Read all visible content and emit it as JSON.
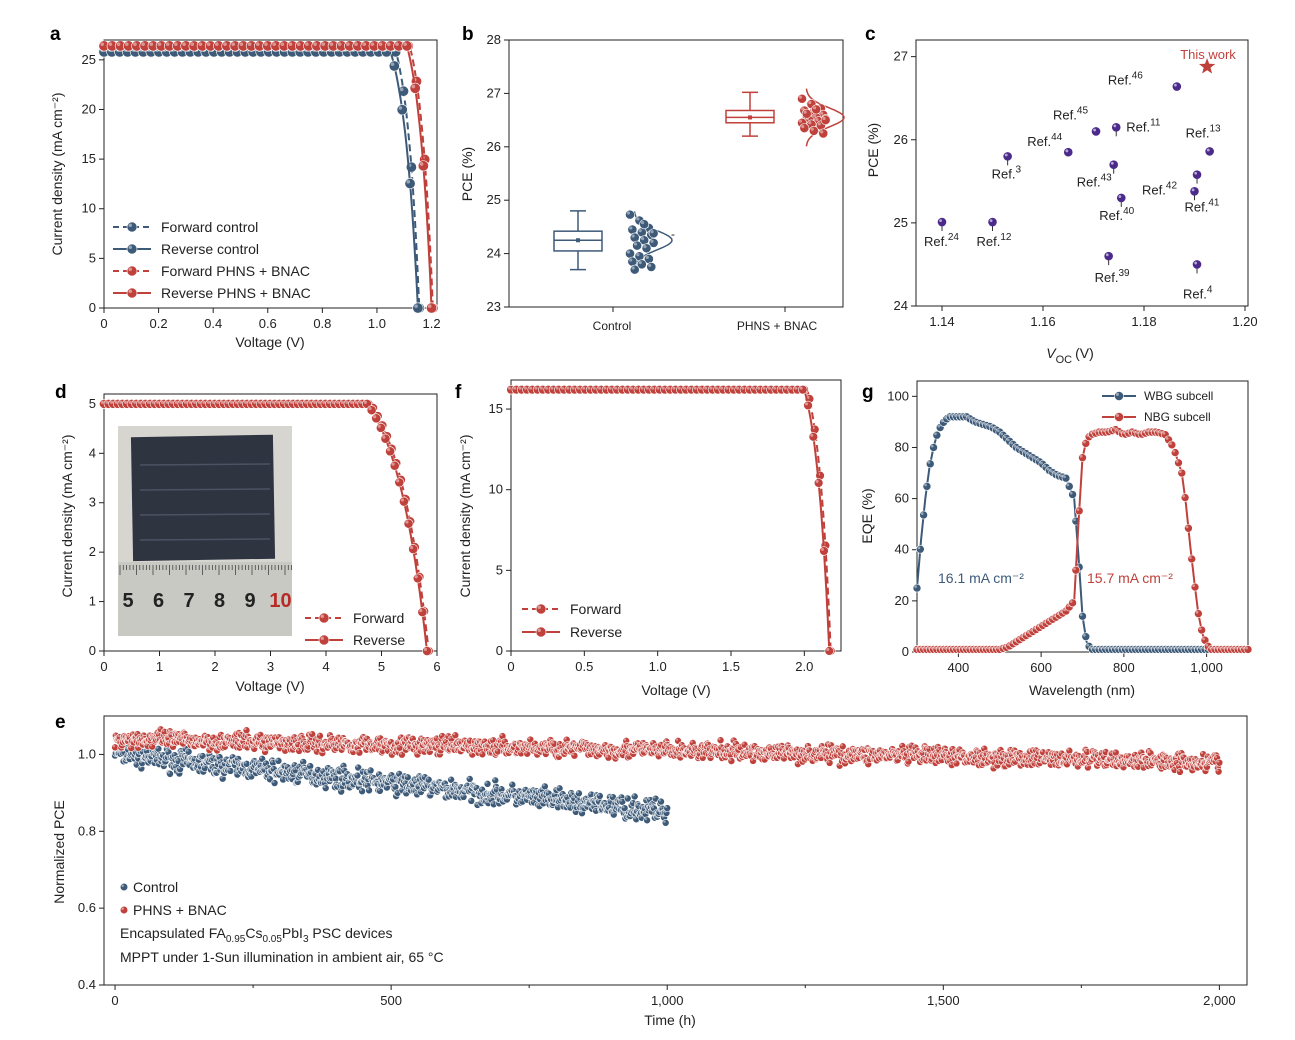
{
  "colors": {
    "blue": "#3d5a78",
    "red": "#c0413b",
    "purple": "#4b2a8c",
    "photo_bg": "#d8d8d2",
    "cell": "#2e3340"
  },
  "chart_data": [
    {
      "panel": "a",
      "type": "line",
      "xlabel": "Voltage (V)",
      "ylabel": "Current density (mA cm⁻²)",
      "xlim": [
        0,
        1.22
      ],
      "ylim": [
        0,
        27
      ],
      "xticks": [
        "0",
        "0.2",
        "0.4",
        "0.6",
        "0.8",
        "1.0",
        "1.2"
      ],
      "yticks": [
        "0",
        "5",
        "10",
        "15",
        "20",
        "25"
      ],
      "legend_position": "bottom-left",
      "series": [
        {
          "name": "Forward control",
          "color": "blue",
          "dashed": true,
          "jsc": 25.8,
          "voc": 1.155,
          "vk": 1.07,
          "n": 0.9
        },
        {
          "name": "Reverse control",
          "color": "blue",
          "dashed": false,
          "jsc": 25.8,
          "voc": 1.15,
          "vk": 1.05,
          "n": 0.85
        },
        {
          "name": "Forward PHNS + BNAC",
          "color": "red",
          "dashed": true,
          "jsc": 26.4,
          "voc": 1.205,
          "vk": 1.12,
          "n": 0.9
        },
        {
          "name": "Reverse PHNS + BNAC",
          "color": "red",
          "dashed": false,
          "jsc": 26.4,
          "voc": 1.2,
          "vk": 1.11,
          "n": 0.85
        }
      ]
    },
    {
      "panel": "b",
      "type": "box",
      "ylabel": "PCE (%)",
      "ylim": [
        23,
        28
      ],
      "yticks": [
        "23",
        "24",
        "25",
        "26",
        "27",
        "28"
      ],
      "categories": [
        "Control",
        "PHNS + BNAC"
      ],
      "boxes": [
        {
          "color": "blue",
          "min": 23.7,
          "q1": 24.05,
          "median": 24.25,
          "mean": 24.25,
          "q3": 24.42,
          "max": 24.8,
          "points": [
            24.73,
            24.62,
            24.48,
            24.45,
            24.4,
            24.35,
            24.3,
            24.25,
            24.2,
            24.15,
            24.1,
            24.0,
            23.95,
            23.9,
            23.85,
            23.8,
            23.75,
            23.7,
            24.55,
            24.38
          ]
        },
        {
          "color": "red",
          "min": 26.2,
          "q1": 26.45,
          "median": 26.55,
          "mean": 26.55,
          "q3": 26.68,
          "max": 27.02,
          "points": [
            26.9,
            26.8,
            26.72,
            26.68,
            26.65,
            26.6,
            26.58,
            26.55,
            26.52,
            26.5,
            26.48,
            26.45,
            26.42,
            26.4,
            26.35,
            26.3,
            26.25,
            26.62,
            26.7,
            26.5
          ]
        }
      ],
      "stray_mark": "-"
    },
    {
      "panel": "c",
      "type": "scatter",
      "xlabel": "V",
      "xlabel_sub": "OC",
      "xlabel_unit": "(V)",
      "ylabel": "PCE (%)",
      "xlim": [
        1.14,
        1.2
      ],
      "ylim": [
        24,
        27.2
      ],
      "xticks": [
        "1.14",
        "1.16",
        "1.18",
        "1.20"
      ],
      "yticks": [
        "24",
        "25",
        "26",
        "27"
      ],
      "this_work": {
        "label": "This work",
        "x": 1.1925,
        "y": 26.88
      },
      "refs": [
        {
          "ref": "46",
          "x": 1.1865,
          "y": 26.64
        },
        {
          "ref": "45",
          "x": 1.1705,
          "y": 26.1
        },
        {
          "ref": "11",
          "x": 1.1745,
          "y": 26.15
        },
        {
          "ref": "44",
          "x": 1.165,
          "y": 25.85
        },
        {
          "ref": "13",
          "x": 1.193,
          "y": 25.86
        },
        {
          "ref": "3",
          "x": 1.153,
          "y": 25.8
        },
        {
          "ref": "43",
          "x": 1.174,
          "y": 25.7
        },
        {
          "ref": "42",
          "x": 1.1905,
          "y": 25.58
        },
        {
          "ref": "40",
          "x": 1.1755,
          "y": 25.3
        },
        {
          "ref": "41",
          "x": 1.19,
          "y": 25.38
        },
        {
          "ref": "24",
          "x": 1.14,
          "y": 25.01
        },
        {
          "ref": "12",
          "x": 1.15,
          "y": 25.01
        },
        {
          "ref": "39",
          "x": 1.173,
          "y": 24.6
        },
        {
          "ref": "4",
          "x": 1.1905,
          "y": 24.5
        }
      ]
    },
    {
      "panel": "d",
      "type": "line",
      "xlabel": "Voltage (V)",
      "ylabel": "Current density (mA cm⁻²)",
      "xlim": [
        0,
        6
      ],
      "ylim": [
        0,
        5.2
      ],
      "xticks": [
        "0",
        "1",
        "2",
        "3",
        "4",
        "5",
        "6"
      ],
      "yticks": [
        "0",
        "1",
        "2",
        "3",
        "4",
        "5"
      ],
      "legend_position": "bottom-right",
      "series": [
        {
          "name": "Forward",
          "color": "red",
          "dashed": true,
          "jsc": 5.0,
          "voc": 5.85,
          "vk": 4.8,
          "n": 1.1
        },
        {
          "name": "Reverse",
          "color": "red",
          "dashed": false,
          "jsc": 5.0,
          "voc": 5.82,
          "vk": 4.75,
          "n": 1.05
        }
      ],
      "inset_ruler": [
        "5",
        "6",
        "7",
        "8",
        "9",
        "10"
      ]
    },
    {
      "panel": "f",
      "type": "line",
      "xlabel": "Voltage (V)",
      "ylabel": "Current density (mA cm⁻²)",
      "xlim": [
        0,
        2.25
      ],
      "ylim": [
        0,
        16.8
      ],
      "xticks": [
        "0",
        "0.5",
        "1.0",
        "1.5",
        "2.0"
      ],
      "yticks": [
        "0",
        "5",
        "10",
        "15"
      ],
      "legend_position": "bottom-left",
      "series": [
        {
          "name": "Forward",
          "color": "red",
          "dashed": true,
          "jsc": 16.2,
          "voc": 2.18,
          "vk": 2.02,
          "n": 0.9
        },
        {
          "name": "Reverse",
          "color": "red",
          "dashed": false,
          "jsc": 16.2,
          "voc": 2.17,
          "vk": 2.0,
          "n": 0.85
        }
      ]
    },
    {
      "panel": "g",
      "type": "line",
      "xlabel": "Wavelength (nm)",
      "ylabel": "EQE (%)",
      "xlim": [
        300,
        1100
      ],
      "ylim": [
        0,
        100
      ],
      "xticks": [
        "400",
        "600",
        "800",
        "1,000"
      ],
      "yticks": [
        "0",
        "20",
        "40",
        "60",
        "80",
        "100"
      ],
      "legend_position": "top-right",
      "annotations": [
        {
          "text": "16.1 mA cm⁻²",
          "color": "blue"
        },
        {
          "text": "15.7 mA cm⁻²",
          "color": "red"
        }
      ],
      "series": [
        {
          "name": "WBG subcell",
          "color": "blue",
          "x": [
            300,
            310,
            320,
            330,
            340,
            350,
            360,
            370,
            380,
            390,
            400,
            420,
            440,
            460,
            480,
            500,
            520,
            540,
            560,
            580,
            600,
            620,
            640,
            660,
            680,
            690,
            700,
            710,
            720,
            740,
            800,
            900,
            1000,
            1100
          ],
          "y": [
            25,
            44,
            60,
            72,
            80,
            86,
            89,
            91,
            92,
            92,
            92,
            92,
            90,
            89,
            88,
            86,
            83,
            80,
            78,
            76,
            74,
            71,
            69,
            68,
            60,
            38,
            14,
            4,
            1,
            1,
            1,
            1,
            1,
            1
          ]
        },
        {
          "name": "NBG subcell",
          "color": "red",
          "x": [
            300,
            400,
            500,
            520,
            540,
            560,
            580,
            600,
            620,
            640,
            660,
            680,
            690,
            700,
            710,
            720,
            740,
            760,
            780,
            800,
            820,
            840,
            860,
            880,
            900,
            920,
            940,
            950,
            960,
            970,
            980,
            990,
            1000,
            1010,
            1020,
            1040,
            1100
          ],
          "y": [
            1,
            1,
            1,
            2,
            4,
            6,
            8,
            10,
            12,
            14,
            16,
            20,
            50,
            76,
            83,
            85,
            86,
            86,
            87,
            85,
            86,
            85,
            86,
            86,
            85,
            80,
            70,
            58,
            42,
            28,
            15,
            7,
            3,
            1,
            1,
            1,
            1
          ]
        }
      ]
    },
    {
      "panel": "e",
      "type": "scatter",
      "xlabel": "Time (h)",
      "ylabel": "Normalized PCE",
      "xlim": [
        -20,
        2050
      ],
      "ylim": [
        0.4,
        1.1
      ],
      "xticks": [
        "0",
        "500",
        "1,000",
        "1,500",
        "2,000"
      ],
      "yticks": [
        "0.4",
        "0.6",
        "0.8",
        "1.0"
      ],
      "series": [
        {
          "name": "Control",
          "color": "blue",
          "t_end": 1000,
          "y_start": 1.0,
          "y_end": 0.85,
          "spread": 0.025
        },
        {
          "name": "PHNS + BNAC",
          "color": "red",
          "t_end": 2000,
          "y_start": 1.04,
          "y_end": 0.98,
          "spread": 0.02
        }
      ],
      "note_line1_parts": [
        "Encapsulated FA",
        "0.95",
        "Cs",
        "0.05",
        "PbI",
        "3",
        " PSC devices"
      ],
      "note_line2": "MPPT under 1-Sun illumination in ambient air, 65 °C"
    }
  ]
}
